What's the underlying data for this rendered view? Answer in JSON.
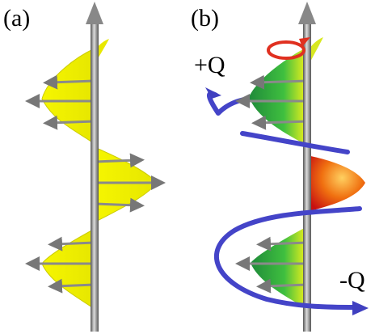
{
  "panels": [
    {
      "label": "(a)"
    },
    {
      "label": "(b)",
      "annotations": [
        "+Q",
        "-Q"
      ]
    }
  ]
}
